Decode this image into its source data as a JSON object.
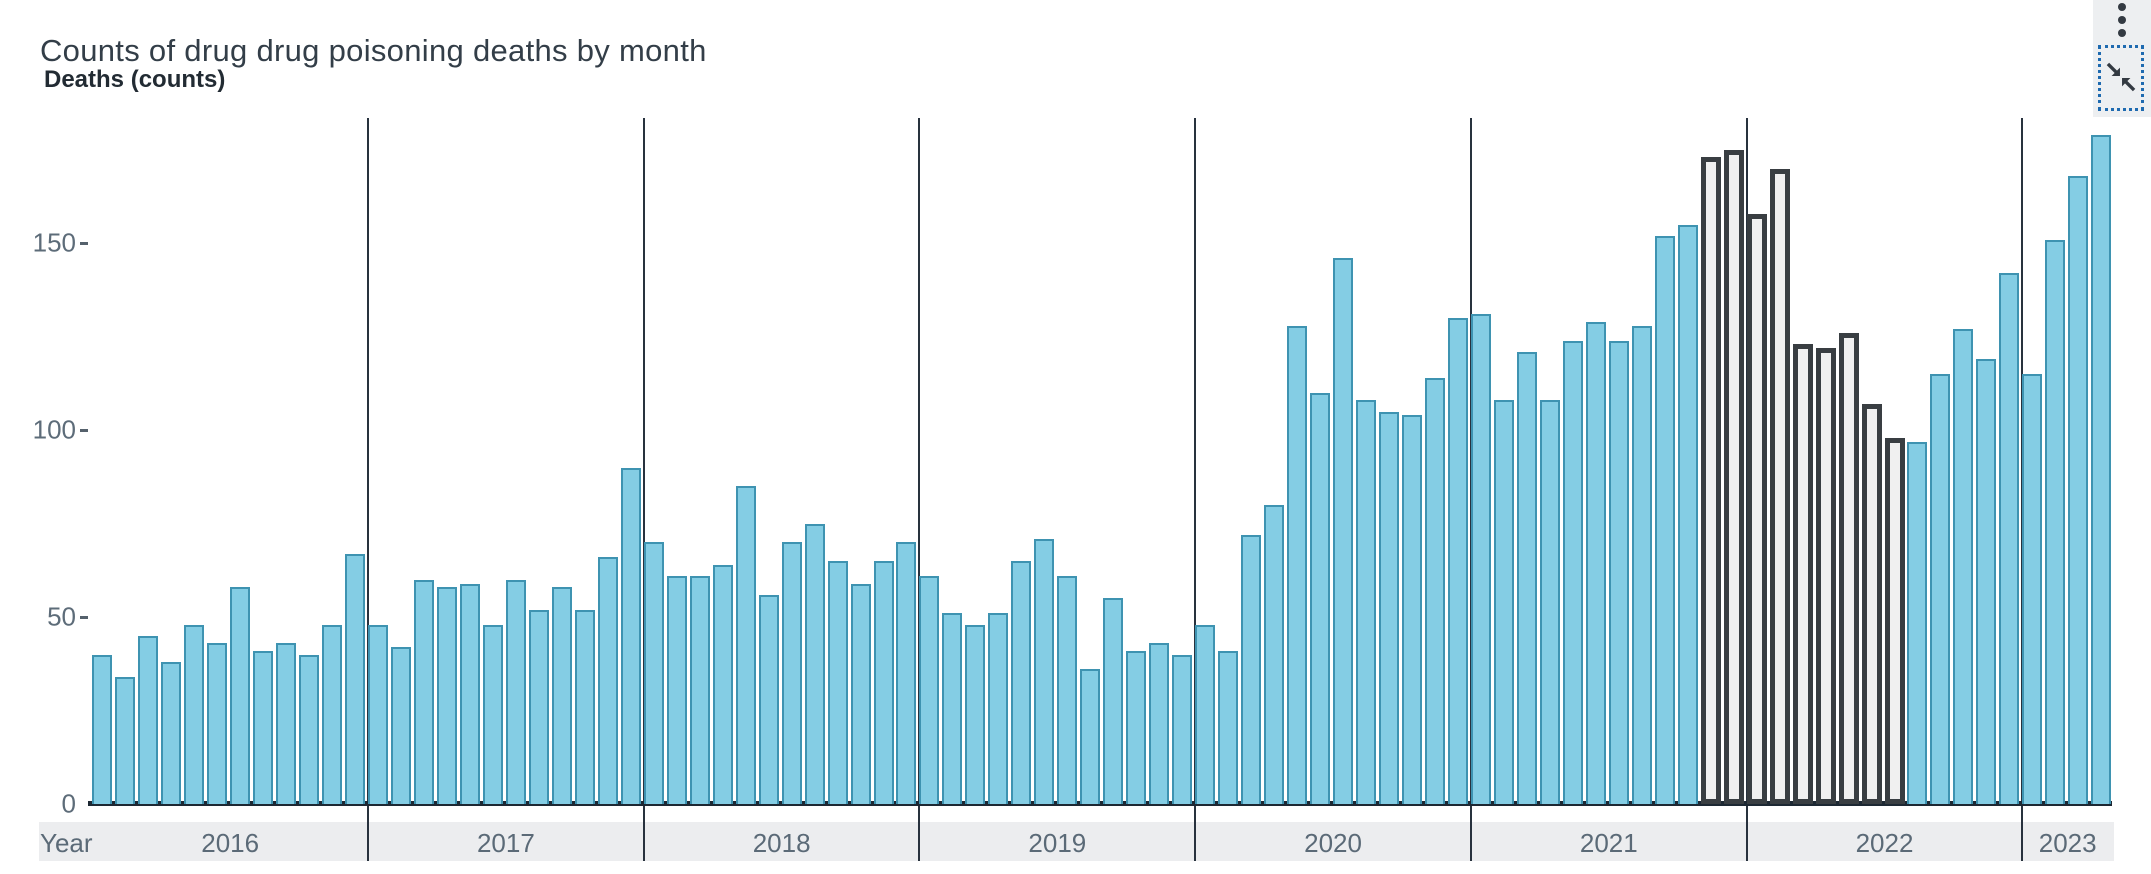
{
  "header": {
    "title": "Counts of drug drug poisoning deaths by month"
  },
  "controls": {
    "menu_icon": "kebab-menu",
    "collapse_icon": "collapse-arrows"
  },
  "chart_data": {
    "type": "bar",
    "title": "Counts of drug drug poisoning deaths by month",
    "ylabel": "Deaths (counts)",
    "xlabel": "Year",
    "yticks": [
      0,
      50,
      100,
      150
    ],
    "ylim": [
      0,
      190
    ],
    "grid": "year-separator-vlines-only",
    "legend": "none",
    "start_month": "2016-01",
    "categories": [
      "2016",
      "2017",
      "2018",
      "2019",
      "2020",
      "2021",
      "2022",
      "2023"
    ],
    "months_per_year": [
      12,
      12,
      12,
      12,
      12,
      12,
      12,
      4
    ],
    "values": [
      40,
      34,
      45,
      38,
      48,
      43,
      58,
      41,
      43,
      40,
      48,
      67,
      48,
      42,
      60,
      58,
      59,
      48,
      60,
      52,
      58,
      52,
      66,
      90,
      70,
      61,
      61,
      64,
      85,
      56,
      70,
      75,
      65,
      59,
      65,
      70,
      61,
      51,
      48,
      51,
      65,
      71,
      61,
      36,
      55,
      41,
      43,
      40,
      48,
      41,
      72,
      80,
      128,
      110,
      146,
      108,
      105,
      104,
      114,
      130,
      131,
      108,
      121,
      108,
      124,
      129,
      124,
      128,
      152,
      155,
      173,
      175,
      158,
      170,
      123,
      122,
      126,
      107,
      98,
      97,
      115,
      127,
      119,
      142,
      115,
      151,
      168,
      179
    ],
    "highlight": {
      "style": "selected-bars-dark-outline",
      "from_month": "2021-11",
      "to_month": "2022-07",
      "from_index": 70,
      "to_index": 78
    },
    "colors": {
      "bar_fill": "#84cde4",
      "bar_stroke": "#3e93b1",
      "highlight_fill": "#f0f0f0",
      "highlight_stroke": "#393e42",
      "axis_line": "#1d2833",
      "separator_line": "#28323e",
      "axis_band_bg": "#ecedef",
      "muted_text": "#5b6a77",
      "title_text": "#333e48",
      "controls_panel_bg": "#edeff1",
      "focus_border": "#1e6ab0",
      "icon": "#333a42"
    }
  }
}
